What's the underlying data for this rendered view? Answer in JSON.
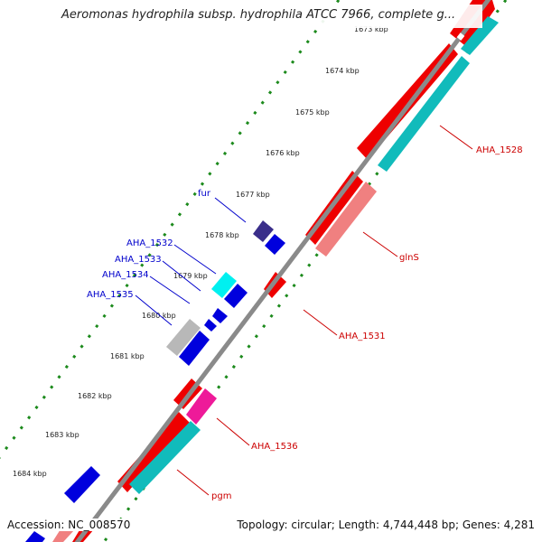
{
  "title": "Aeromonas hydrophila subsp. hydrophila ATCC 7966, complete g...",
  "footer": {
    "accession": "Accession: NC_008570",
    "summary": "Topology: circular; Length: 4,744,448 bp; Genes: 4,281"
  },
  "colors": {
    "background": "#ffffff",
    "backbone": "#8a8a8a",
    "tick": "#1c8a1c",
    "red": "#ee0000",
    "pink": "#f08080",
    "cyan": "#11bbbb",
    "blue": "#0000dd",
    "dark_purple": "#3a2e8a",
    "light_cyan": "#00f0f0",
    "gray": "#b8b8b8",
    "magenta": "#ee1a99",
    "label_blue": "#0000cc",
    "label_red": "#cc0000"
  },
  "ticks": [
    "1673 kbp",
    "1674 kbp",
    "1675 kbp",
    "1676 kbp",
    "1677 kbp",
    "1678 kbp",
    "1679 kbp",
    "1680 kbp",
    "1681 kbp",
    "1682 kbp",
    "1683 kbp",
    "1684 kbp"
  ],
  "genes": [
    {
      "label": "AHA_1528",
      "color": "red"
    },
    {
      "label": "glnS",
      "color": "red"
    },
    {
      "label": "AHA_1531",
      "color": "red"
    },
    {
      "label": "AHA_1536",
      "color": "red"
    },
    {
      "label": "pgm",
      "color": "red"
    },
    {
      "label": "fur",
      "color": "blue"
    },
    {
      "label": "AHA_1532",
      "color": "blue"
    },
    {
      "label": "AHA_1533",
      "color": "blue"
    },
    {
      "label": "AHA_1534",
      "color": "blue"
    },
    {
      "label": "AHA_1535",
      "color": "blue"
    }
  ]
}
